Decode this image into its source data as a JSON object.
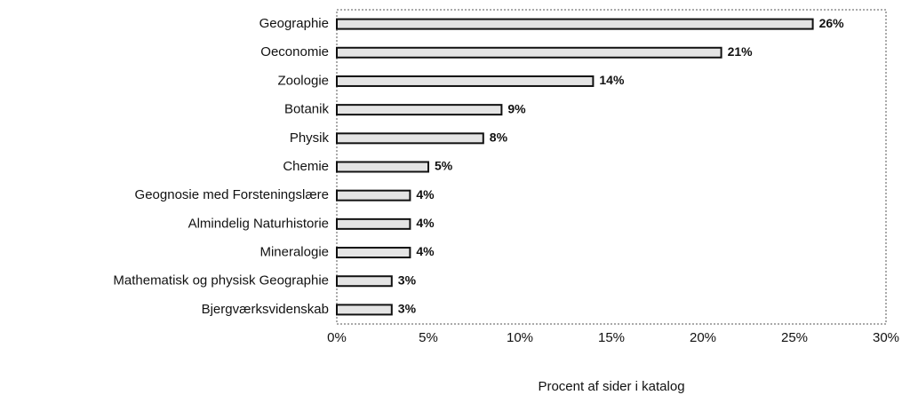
{
  "chart_data": {
    "type": "hbar",
    "xlabel": "Procent af sider i katalog",
    "categories": [
      "Geographie",
      "Oeconomie",
      "Zoologie",
      "Botanik",
      "Physik",
      "Chemie",
      "Geognosie med Forsteningslære",
      "Almindelig Naturhistorie",
      "Mineralogie",
      "Mathematisk og physisk Geographie",
      "Bjergværksvidenskab"
    ],
    "values": [
      26,
      21,
      14,
      9,
      8,
      5,
      4,
      4,
      4,
      3,
      3
    ],
    "value_labels": [
      "26%",
      "21%",
      "14%",
      "9%",
      "8%",
      "5%",
      "4%",
      "4%",
      "4%",
      "3%",
      "3%"
    ],
    "color": "#e4e4e4",
    "xlim": [
      0,
      30
    ],
    "xticks": [
      {
        "value": 0,
        "label": "0%"
      },
      {
        "value": 5,
        "label": "5%"
      },
      {
        "value": 10,
        "label": "10%"
      },
      {
        "value": 15,
        "label": "15%"
      },
      {
        "value": 20,
        "label": "20%"
      },
      {
        "value": 25,
        "label": "25%"
      },
      {
        "value": 30,
        "label": "30%"
      }
    ],
    "grid": false
  }
}
